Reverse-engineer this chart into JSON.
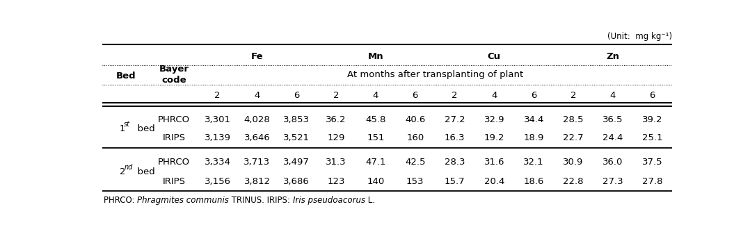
{
  "unit_text": "(Unit:  mg kg⁻¹)",
  "element_headers": [
    "Fe",
    "Mn",
    "Cu",
    "Zn"
  ],
  "subheader": "At months after transplanting of plant",
  "month_headers": [
    "2",
    "4",
    "6",
    "2",
    "4",
    "6",
    "2",
    "4",
    "6",
    "2",
    "4",
    "6"
  ],
  "rows": [
    {
      "bed": "1",
      "bed_sup": "st",
      "code": "PHRCO",
      "values": [
        "3,301",
        "4,028",
        "3,853",
        "36.2",
        "45.8",
        "40.6",
        "27.2",
        "32.9",
        "34.4",
        "28.5",
        "36.5",
        "39.2"
      ]
    },
    {
      "bed": "",
      "bed_sup": "",
      "code": "IRIPS",
      "values": [
        "3,139",
        "3,646",
        "3,521",
        "129",
        "151",
        "160",
        "16.3",
        "19.2",
        "18.9",
        "22.7",
        "24.4",
        "25.1"
      ]
    },
    {
      "bed": "2",
      "bed_sup": "nd",
      "code": "PHRCO",
      "values": [
        "3,334",
        "3,713",
        "3,497",
        "31.3",
        "47.1",
        "42.5",
        "28.3",
        "31.6",
        "32.1",
        "30.9",
        "36.0",
        "37.5"
      ]
    },
    {
      "bed": "",
      "bed_sup": "",
      "code": "IRIPS",
      "values": [
        "3,156",
        "3,812",
        "3,686",
        "123",
        "140",
        "153",
        "15.7",
        "20.4",
        "18.6",
        "22.8",
        "27.3",
        "27.8"
      ]
    }
  ],
  "footnote_parts": [
    [
      "PHRCO: ",
      false
    ],
    [
      "Phragmites communis",
      true
    ],
    [
      " TRINUS. IRIPS: ",
      false
    ],
    [
      "Iris pseudoacorus",
      true
    ],
    [
      " L.",
      false
    ]
  ],
  "bg_color": "white",
  "font_size": 9.5,
  "small_font_size": 8.5
}
